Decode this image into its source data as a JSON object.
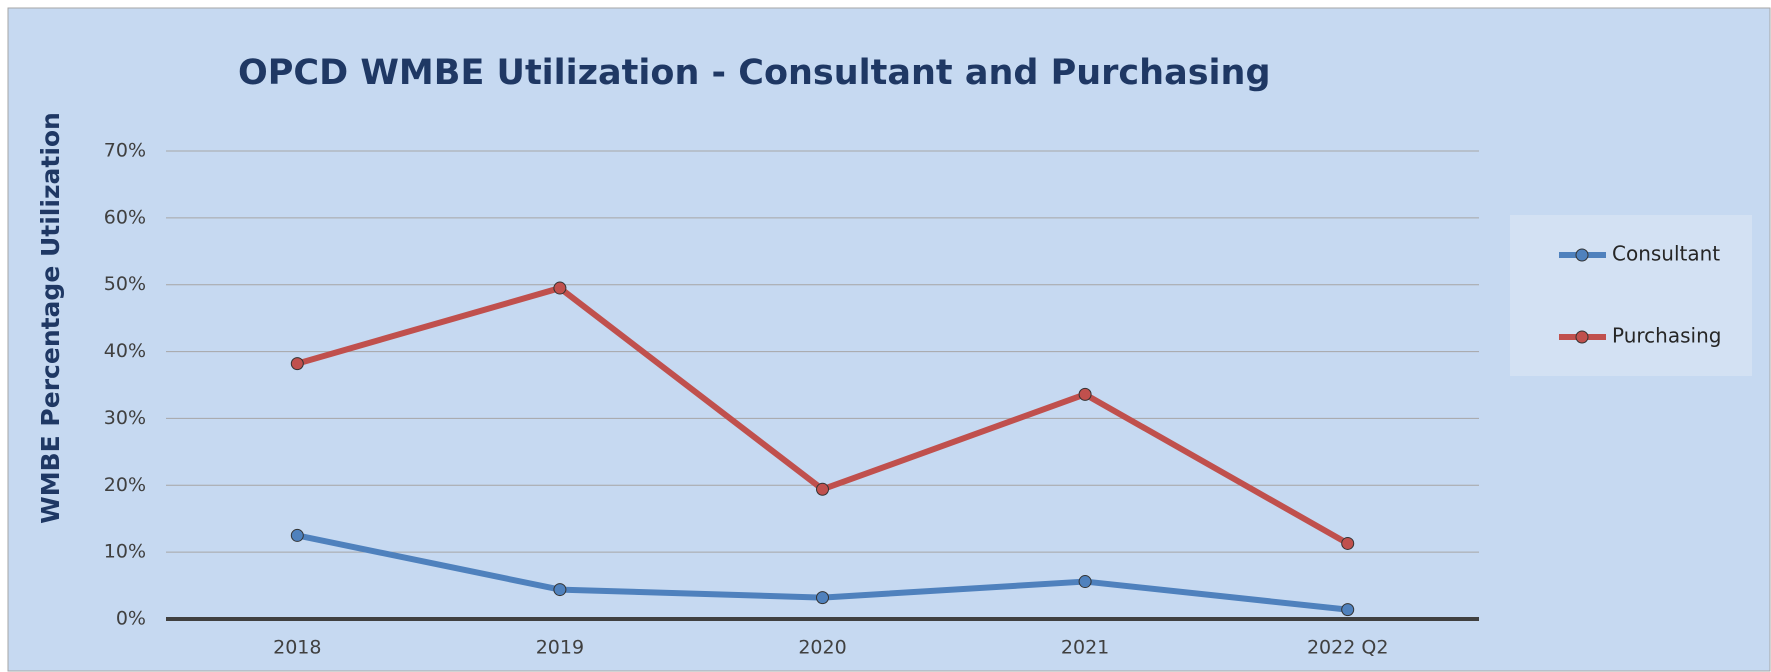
{
  "chart_data": {
    "type": "line",
    "title": "OPCD WMBE Utilization - Consultant and Purchasing",
    "y_label": "WMBE Percentage Utilization",
    "categories": [
      "2018",
      "2019",
      "2020",
      "2021",
      "2022 Q2"
    ],
    "series": [
      {
        "name": "Consultant",
        "color": "#4f81bd",
        "values": [
          12.5,
          4.4,
          3.2,
          5.6,
          1.4
        ]
      },
      {
        "name": "Purchasing",
        "color": "#c0504d",
        "values": [
          38.2,
          49.5,
          19.4,
          33.6,
          11.3
        ]
      }
    ],
    "ylim": [
      0,
      70
    ],
    "yticks": [
      {
        "value": 0,
        "label": "0%"
      },
      {
        "value": 10,
        "label": "10%"
      },
      {
        "value": 20,
        "label": "20%"
      },
      {
        "value": 30,
        "label": "30%"
      },
      {
        "value": 40,
        "label": "40%"
      },
      {
        "value": 50,
        "label": "50%"
      },
      {
        "value": 60,
        "label": "60%"
      },
      {
        "value": 70,
        "label": "70%"
      }
    ],
    "grid": true,
    "legend": "right"
  }
}
